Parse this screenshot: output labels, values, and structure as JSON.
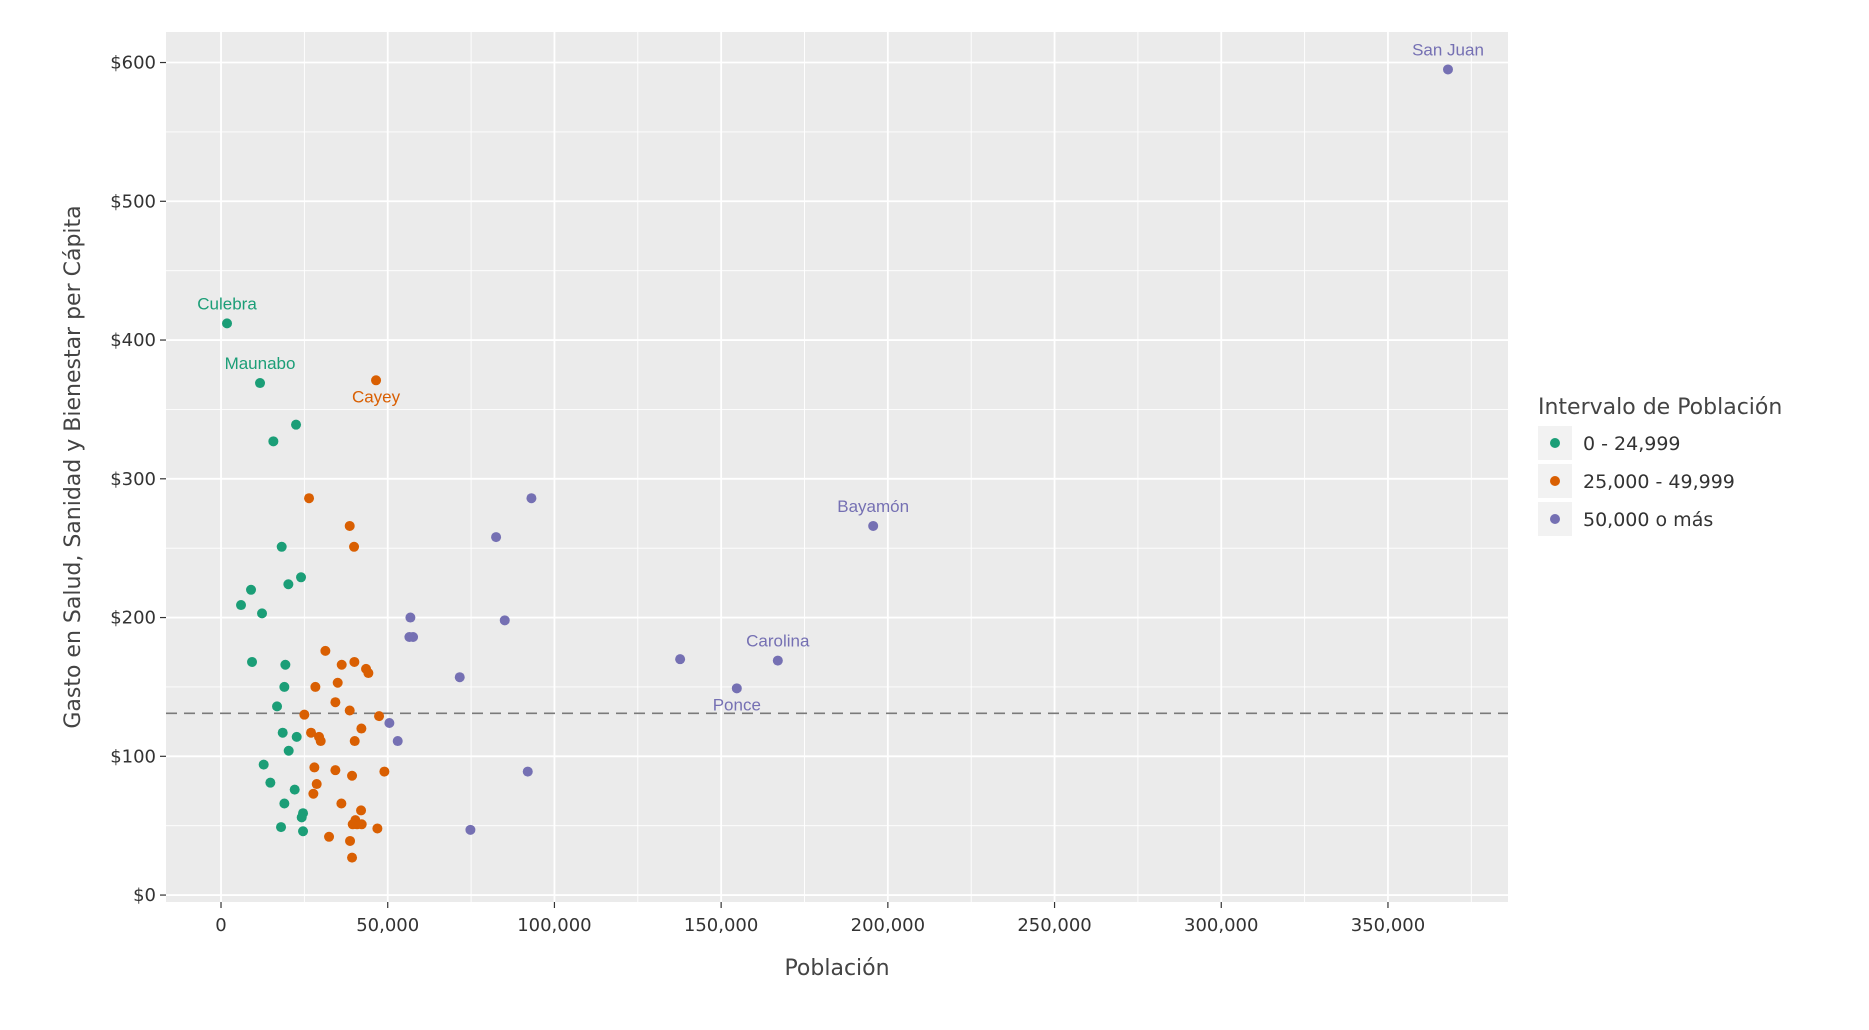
{
  "chart_data": {
    "type": "scatter",
    "title": "",
    "xlabel": "Población",
    "ylabel": "Gasto en Salud, Sanidad y Bienestar per Cápita",
    "xlim": [
      -16500,
      386000
    ],
    "ylim": [
      -5,
      622
    ],
    "x_ticks": [
      0,
      50000,
      100000,
      150000,
      200000,
      250000,
      300000,
      350000
    ],
    "x_tick_labels": [
      "0",
      "50,000",
      "100,000",
      "150,000",
      "200,000",
      "250,000",
      "300,000",
      "350,000"
    ],
    "y_ticks": [
      0,
      100,
      200,
      300,
      400,
      500,
      600
    ],
    "y_tick_labels": [
      "$0",
      "$100",
      "$200",
      "$300",
      "$400",
      "$500",
      "$600"
    ],
    "grid": true,
    "reference_line": {
      "y": 131,
      "style": "dashed"
    },
    "legend": {
      "title": "Intervalo de Población",
      "placement": "right"
    },
    "series": [
      {
        "name": "0 - 24,999",
        "color": "#1b9e77",
        "points": [
          [
            1800,
            412
          ],
          [
            11700,
            369
          ],
          [
            15700,
            327
          ],
          [
            22500,
            339
          ],
          [
            18200,
            251
          ],
          [
            24000,
            229
          ],
          [
            20200,
            224
          ],
          [
            9000,
            220
          ],
          [
            6000,
            209
          ],
          [
            12300,
            203
          ],
          [
            9300,
            168
          ],
          [
            19300,
            166
          ],
          [
            19000,
            150
          ],
          [
            16800,
            136
          ],
          [
            18500,
            117
          ],
          [
            22700,
            114
          ],
          [
            20300,
            104
          ],
          [
            12800,
            94
          ],
          [
            14800,
            81
          ],
          [
            19000,
            66
          ],
          [
            22100,
            76
          ],
          [
            24600,
            59
          ],
          [
            24200,
            56
          ],
          [
            18000,
            49
          ],
          [
            24600,
            46
          ]
        ],
        "labels": [
          {
            "text": "Culebra",
            "x": 1800,
            "y": 412
          },
          {
            "text": "Maunabo",
            "x": 11700,
            "y": 369
          }
        ]
      },
      {
        "name": "25,000 - 49,999",
        "color": "#d95f02",
        "points": [
          [
            46500,
            371
          ],
          [
            26400,
            286
          ],
          [
            38600,
            266
          ],
          [
            39900,
            251
          ],
          [
            31300,
            176
          ],
          [
            36200,
            166
          ],
          [
            40000,
            168
          ],
          [
            43500,
            163
          ],
          [
            44200,
            160
          ],
          [
            35000,
            153
          ],
          [
            28300,
            150
          ],
          [
            34300,
            139
          ],
          [
            38600,
            133
          ],
          [
            25000,
            130
          ],
          [
            47400,
            129
          ],
          [
            42100,
            120
          ],
          [
            27000,
            117
          ],
          [
            29400,
            114
          ],
          [
            29900,
            111
          ],
          [
            40100,
            111
          ],
          [
            28000,
            92
          ],
          [
            34300,
            90
          ],
          [
            39300,
            86
          ],
          [
            49000,
            89
          ],
          [
            28700,
            80
          ],
          [
            27700,
            73
          ],
          [
            36100,
            66
          ],
          [
            42000,
            61
          ],
          [
            40300,
            54
          ],
          [
            40800,
            51
          ],
          [
            39500,
            51
          ],
          [
            42200,
            51
          ],
          [
            46900,
            48
          ],
          [
            32400,
            42
          ],
          [
            38700,
            39
          ],
          [
            39300,
            27
          ]
        ],
        "labels": [
          {
            "text": "Cayey",
            "x": 46500,
            "y": 371
          }
        ]
      },
      {
        "name": "50,000 o más",
        "color": "#7570b3",
        "points": [
          [
            368000,
            595
          ],
          [
            195600,
            266
          ],
          [
            93100,
            286
          ],
          [
            82500,
            258
          ],
          [
            56800,
            200
          ],
          [
            85100,
            198
          ],
          [
            56500,
            186
          ],
          [
            57600,
            186
          ],
          [
            137700,
            170
          ],
          [
            167000,
            169
          ],
          [
            71600,
            157
          ],
          [
            154700,
            149
          ],
          [
            50500,
            124
          ],
          [
            53000,
            111
          ],
          [
            92000,
            89
          ],
          [
            74800,
            47
          ]
        ],
        "labels": [
          {
            "text": "San Juan",
            "x": 368000,
            "y": 595
          },
          {
            "text": "Bayamón",
            "x": 195600,
            "y": 266
          },
          {
            "text": "Carolina",
            "x": 167000,
            "y": 169
          },
          {
            "text": "Ponce",
            "x": 154700,
            "y": 149
          }
        ]
      }
    ]
  }
}
